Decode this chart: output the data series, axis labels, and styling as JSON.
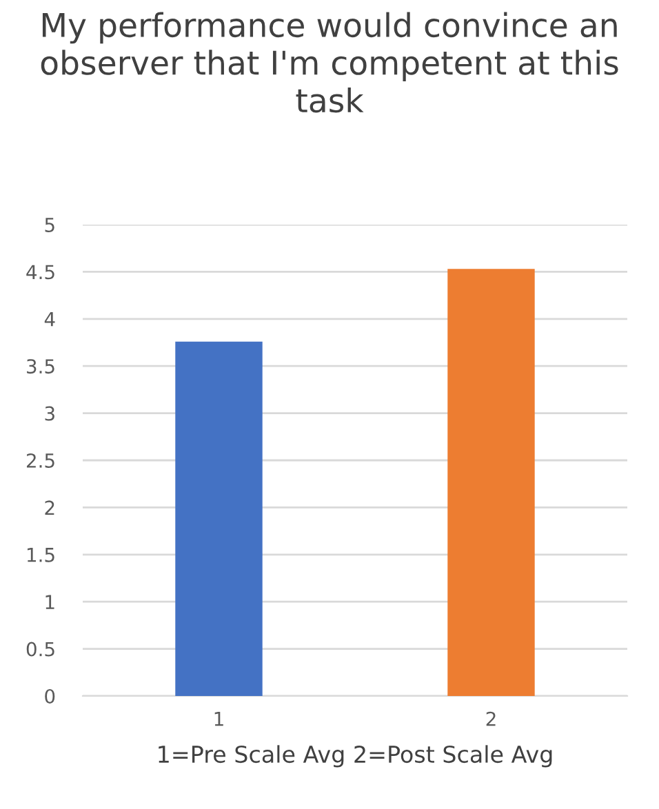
{
  "chart_data": {
    "type": "bar",
    "title": "My performance would convince an observer that I'm competent at this task",
    "xlabel": "1=Pre Scale Avg 2=Post Scale Avg",
    "categories": [
      "1",
      "2"
    ],
    "values": [
      3.76,
      4.53
    ],
    "colors": [
      "#4472c4",
      "#ed7d31"
    ],
    "ylim": [
      0,
      5
    ],
    "yticks": [
      0,
      0.5,
      1,
      1.5,
      2,
      2.5,
      3,
      3.5,
      4,
      4.5,
      5
    ],
    "grid": "y"
  }
}
